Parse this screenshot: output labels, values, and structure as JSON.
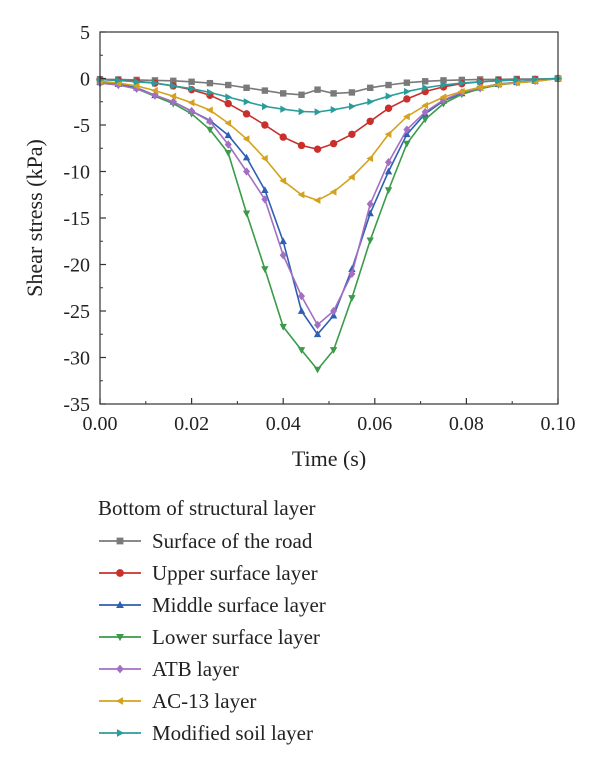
{
  "chart_data": {
    "type": "line",
    "title": "",
    "xlabel": "Time (s)",
    "ylabel": "Shear stress (kPa)",
    "xlim": [
      0,
      0.1
    ],
    "ylim": [
      -35,
      5
    ],
    "x_ticks": [
      0,
      0.02,
      0.04,
      0.06,
      0.08,
      0.1
    ],
    "x_tick_labels": [
      "0.00",
      "0.02",
      "0.04",
      "0.06",
      "0.08",
      "0.10"
    ],
    "y_ticks": [
      5,
      0,
      -5,
      -10,
      -15,
      -20,
      -25,
      -30,
      -35
    ],
    "y_tick_labels": [
      "5",
      "0",
      "-5",
      "-10",
      "-15",
      "-20",
      "-25",
      "-30",
      "-35"
    ],
    "grid": false,
    "legend_position": "below",
    "legend_title": "Bottom of structural layer",
    "x": [
      0,
      0.004,
      0.008,
      0.012,
      0.016,
      0.02,
      0.024,
      0.028,
      0.032,
      0.036,
      0.04,
      0.044,
      0.0475,
      0.051,
      0.055,
      0.059,
      0.063,
      0.067,
      0.071,
      0.075,
      0.079,
      0.083,
      0.087,
      0.091,
      0.095,
      0.1
    ],
    "series": [
      {
        "name": "Surface of the road",
        "color": "#7a7a7a",
        "marker": "square",
        "values": [
          -0.1,
          -0.1,
          -0.15,
          -0.2,
          -0.25,
          -0.35,
          -0.5,
          -0.7,
          -1.0,
          -1.3,
          -1.6,
          -1.75,
          -1.2,
          -1.6,
          -1.5,
          -1.0,
          -0.7,
          -0.45,
          -0.3,
          -0.2,
          -0.15,
          -0.1,
          -0.1,
          -0.05,
          -0.05,
          0
        ]
      },
      {
        "name": "Upper surface layer",
        "color": "#c9302c",
        "marker": "circle",
        "values": [
          -0.1,
          -0.2,
          -0.3,
          -0.5,
          -0.8,
          -1.2,
          -1.8,
          -2.7,
          -3.8,
          -5.0,
          -6.3,
          -7.2,
          -7.6,
          -7.0,
          -6.0,
          -4.6,
          -3.2,
          -2.2,
          -1.4,
          -0.9,
          -0.55,
          -0.35,
          -0.2,
          -0.15,
          -0.1,
          0
        ]
      },
      {
        "name": "Middle surface layer",
        "color": "#2e5fb3",
        "marker": "triangle-up",
        "values": [
          -0.4,
          -0.6,
          -1.0,
          -1.8,
          -2.5,
          -3.5,
          -4.5,
          -6.1,
          -8.5,
          -12.0,
          -17.5,
          -25.0,
          -27.5,
          -25.5,
          -20.5,
          -14.5,
          -10.0,
          -6.0,
          -3.8,
          -2.4,
          -1.6,
          -1.0,
          -0.6,
          -0.4,
          -0.25,
          0
        ]
      },
      {
        "name": "Lower surface layer",
        "color": "#3a9b48",
        "marker": "triangle-down",
        "values": [
          -0.5,
          -0.7,
          -1.1,
          -1.9,
          -2.7,
          -3.8,
          -5.5,
          -8.0,
          -14.5,
          -20.5,
          -26.7,
          -29.2,
          -31.3,
          -29.2,
          -23.6,
          -17.4,
          -12.0,
          -7.0,
          -4.4,
          -2.7,
          -1.7,
          -1.1,
          -0.7,
          -0.45,
          -0.3,
          0
        ]
      },
      {
        "name": "ATB layer",
        "color": "#a36fc3",
        "marker": "diamond",
        "values": [
          -0.5,
          -0.7,
          -1.1,
          -1.8,
          -2.5,
          -3.5,
          -4.6,
          -7.1,
          -10.0,
          -13.0,
          -19.0,
          -23.4,
          -26.5,
          -25.0,
          -21.0,
          -13.5,
          -9.0,
          -5.5,
          -3.6,
          -2.3,
          -1.5,
          -1.0,
          -0.6,
          -0.4,
          -0.25,
          0
        ]
      },
      {
        "name": "AC-13 layer",
        "color": "#d4a21e",
        "marker": "triangle-left",
        "values": [
          -0.3,
          -0.5,
          -0.8,
          -1.3,
          -1.9,
          -2.6,
          -3.4,
          -4.8,
          -6.5,
          -8.6,
          -11.0,
          -12.5,
          -13.1,
          -12.2,
          -10.6,
          -8.6,
          -6.0,
          -4.1,
          -2.9,
          -2.0,
          -1.4,
          -0.95,
          -0.65,
          -0.45,
          -0.3,
          0
        ]
      },
      {
        "name": "Modified soil layer",
        "color": "#2a9d9b",
        "marker": "triangle-right",
        "values": [
          -0.1,
          -0.2,
          -0.35,
          -0.5,
          -0.8,
          -1.1,
          -1.5,
          -2.0,
          -2.5,
          -3.0,
          -3.3,
          -3.55,
          -3.6,
          -3.35,
          -3.0,
          -2.5,
          -1.9,
          -1.4,
          -1.0,
          -0.7,
          -0.5,
          -0.35,
          -0.25,
          -0.15,
          -0.1,
          0
        ]
      }
    ]
  }
}
